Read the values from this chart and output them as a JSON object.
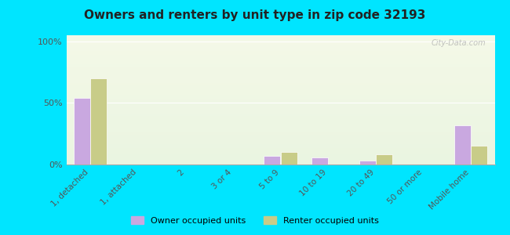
{
  "title": "Owners and renters by unit type in zip code 32193",
  "categories": [
    "1, detached",
    "1, attached",
    "2",
    "3 or 4",
    "5 to 9",
    "10 to 19",
    "20 to 49",
    "50 or more",
    "Mobile home"
  ],
  "owner_values": [
    54,
    0,
    0,
    0,
    7,
    6,
    3,
    0,
    32
  ],
  "renter_values": [
    70,
    0,
    0,
    0,
    10,
    0,
    8,
    0,
    15
  ],
  "owner_color": "#c9a8e0",
  "renter_color": "#c8cc88",
  "background_outer": "#00e5ff",
  "background_inner_top": "#f5f9e8",
  "background_inner_bottom": "#e8f5e0",
  "yticks": [
    0,
    50,
    100
  ],
  "ylim": [
    0,
    105
  ],
  "ylabel_labels": [
    "0%",
    "50%",
    "100%"
  ],
  "watermark": "City-Data.com",
  "legend_owner": "Owner occupied units",
  "legend_renter": "Renter occupied units",
  "bar_width": 0.35
}
